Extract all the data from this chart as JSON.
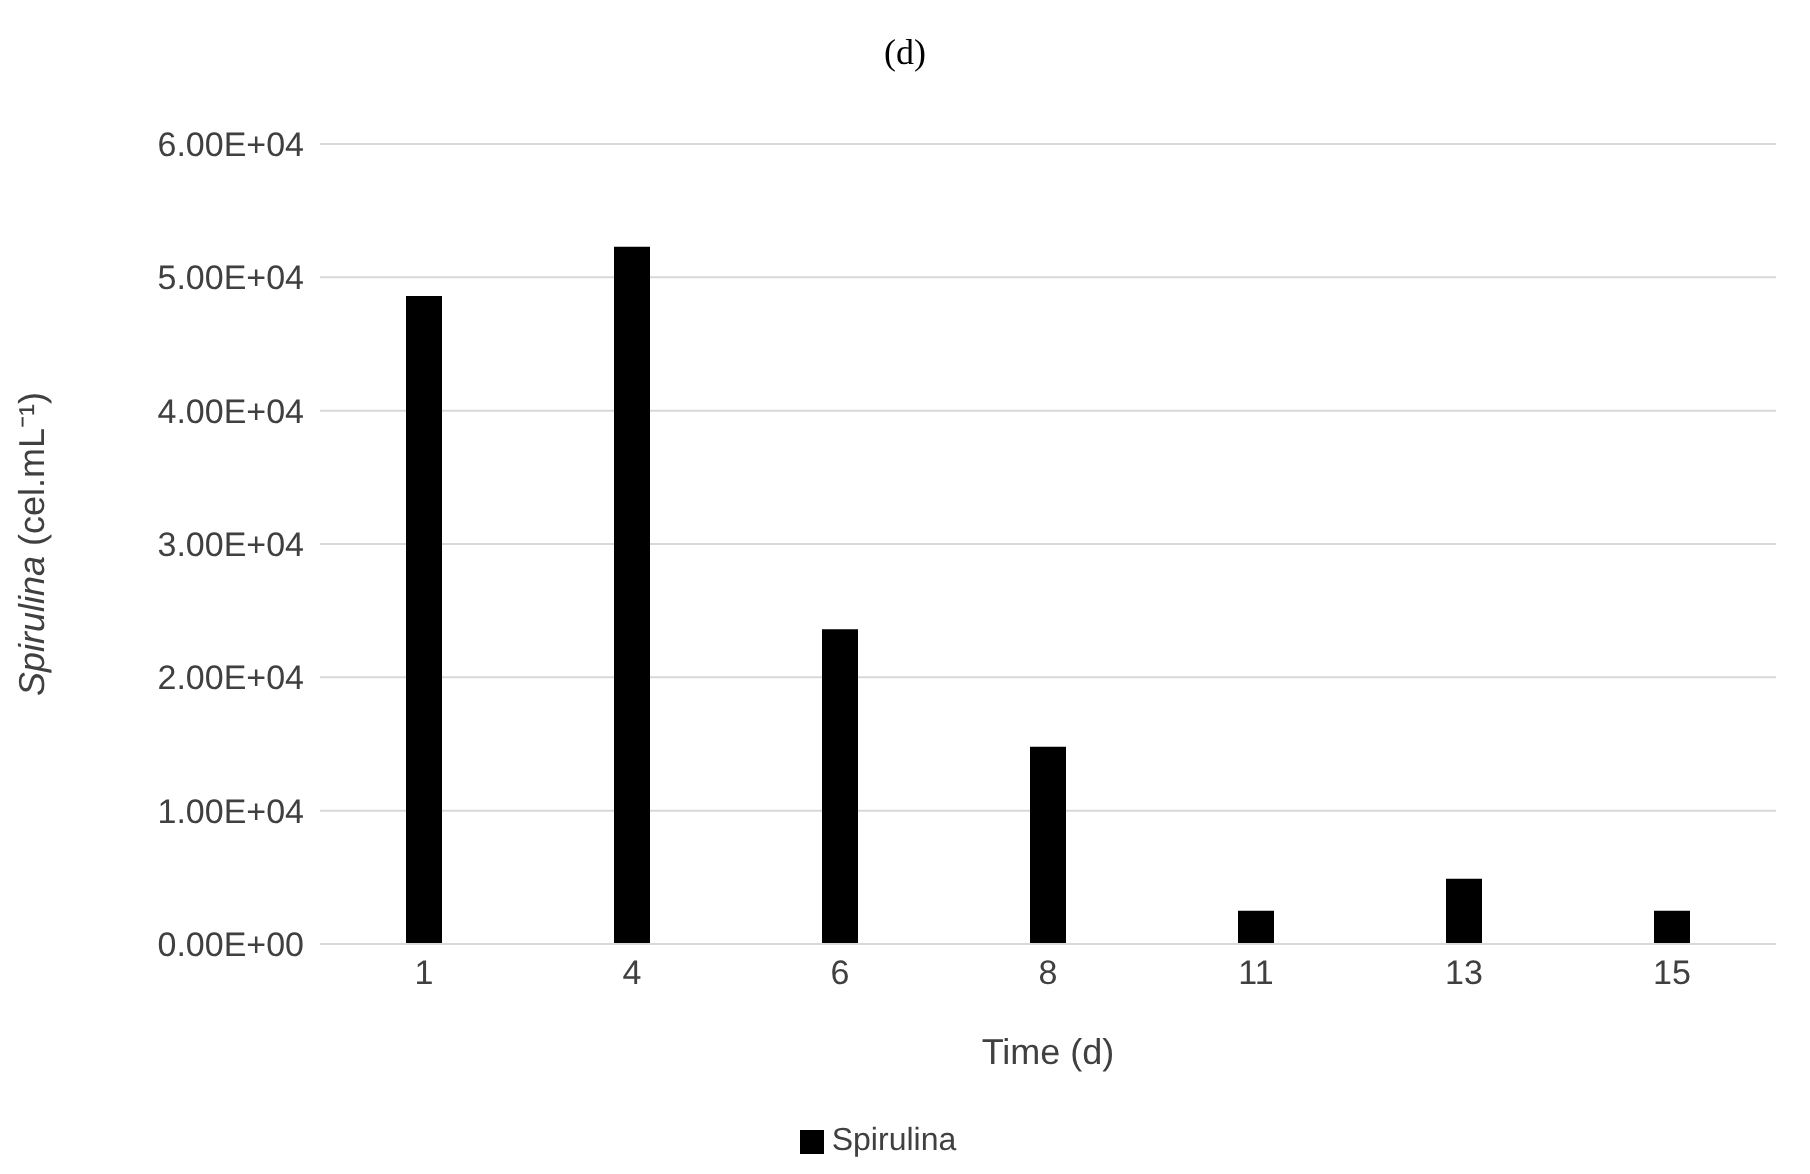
{
  "chart_data": {
    "type": "bar",
    "title": "(d)",
    "xlabel": "Time (d)",
    "ylabel": "Spirulina (cel.mL⁻¹)",
    "categories": [
      "1",
      "4",
      "6",
      "8",
      "11",
      "13",
      "15"
    ],
    "series": [
      {
        "name": "Spirulina",
        "color": "#000000",
        "values": [
          48600,
          52300,
          23600,
          14800,
          2500,
          4900,
          2500
        ]
      }
    ],
    "ylim": [
      0,
      60000
    ],
    "yticks": [
      {
        "value": 0,
        "label": "0.00E+00"
      },
      {
        "value": 10000,
        "label": "1.00E+04"
      },
      {
        "value": 20000,
        "label": "2.00E+04"
      },
      {
        "value": 30000,
        "label": "3.00E+04"
      },
      {
        "value": 40000,
        "label": "4.00E+04"
      },
      {
        "value": 50000,
        "label": "5.00E+04"
      },
      {
        "value": 60000,
        "label": "6.00E+04"
      }
    ],
    "grid": "y",
    "legend": "bottom"
  }
}
